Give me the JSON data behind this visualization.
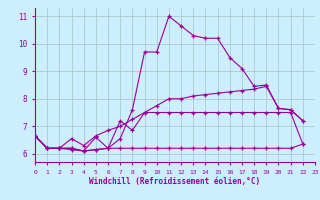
{
  "background_color": "#cceeff",
  "grid_color": "#aacccc",
  "line_color": "#990099",
  "xlabel": "Windchill (Refroidissement éolien,°C)",
  "xlim": [
    0,
    23
  ],
  "ylim": [
    5.7,
    11.3
  ],
  "yticks": [
    6,
    7,
    8,
    9,
    10,
    11
  ],
  "xticks": [
    0,
    1,
    2,
    3,
    4,
    5,
    6,
    7,
    8,
    9,
    10,
    11,
    12,
    13,
    14,
    15,
    16,
    17,
    18,
    19,
    20,
    21,
    22,
    23
  ],
  "series": [
    [
      0,
      6.65,
      1,
      6.2,
      2,
      6.2,
      3,
      6.2,
      4,
      6.1,
      5,
      6.15,
      6,
      6.2,
      7,
      6.55,
      8,
      7.6,
      9,
      9.7,
      10,
      9.7,
      11,
      11.0,
      12,
      10.65,
      13,
      10.3,
      14,
      10.2,
      15,
      10.2,
      16,
      9.5,
      17,
      9.1,
      18,
      8.45,
      19,
      8.5,
      20,
      7.65,
      21,
      7.6,
      22,
      7.2
    ],
    [
      0,
      6.65,
      1,
      6.2,
      2,
      6.2,
      3,
      6.2,
      4,
      6.1,
      5,
      6.6,
      6,
      6.2,
      7,
      7.2,
      8,
      6.85,
      9,
      7.5,
      10,
      7.5,
      11,
      7.5,
      12,
      7.5,
      13,
      7.5,
      14,
      7.5,
      15,
      7.5,
      16,
      7.5,
      17,
      7.5,
      18,
      7.5,
      19,
      7.5,
      20,
      7.5,
      21,
      7.5,
      22,
      6.35
    ],
    [
      0,
      6.65,
      1,
      6.2,
      2,
      6.2,
      3,
      6.15,
      4,
      6.1,
      5,
      6.15,
      6,
      6.2,
      7,
      6.2,
      8,
      6.2,
      9,
      6.2,
      10,
      6.2,
      11,
      6.2,
      12,
      6.2,
      13,
      6.2,
      14,
      6.2,
      15,
      6.2,
      16,
      6.2,
      17,
      6.2,
      18,
      6.2,
      19,
      6.2,
      20,
      6.2,
      21,
      6.2,
      22,
      6.35
    ],
    [
      0,
      6.65,
      1,
      6.2,
      2,
      6.2,
      3,
      6.55,
      4,
      6.3,
      5,
      6.65,
      6,
      6.85,
      7,
      7.0,
      8,
      7.25,
      9,
      7.5,
      10,
      7.75,
      11,
      8.0,
      12,
      8.0,
      13,
      8.1,
      14,
      8.15,
      15,
      8.2,
      16,
      8.25,
      17,
      8.3,
      18,
      8.35,
      19,
      8.45,
      20,
      7.65,
      21,
      7.6,
      22,
      7.2
    ]
  ]
}
